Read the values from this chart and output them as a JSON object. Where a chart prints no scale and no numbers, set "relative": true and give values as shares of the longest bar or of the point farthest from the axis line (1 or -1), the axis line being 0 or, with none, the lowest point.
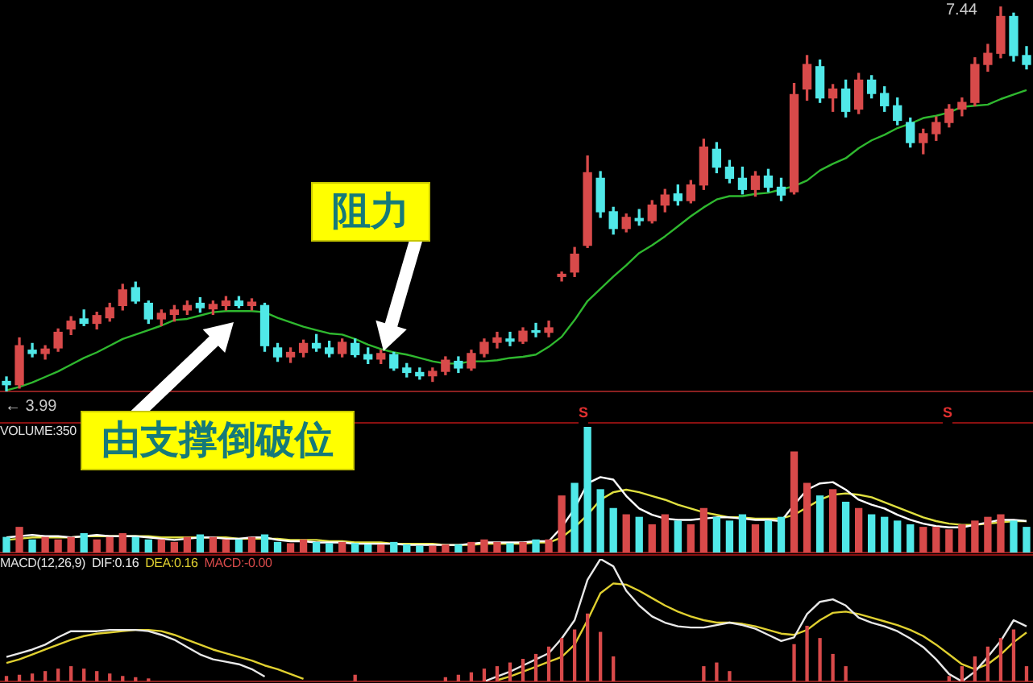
{
  "chart_data": [
    {
      "type": "candlestick",
      "categories": [
        null,
        null,
        null,
        null,
        null,
        null,
        null,
        null,
        null,
        null,
        null,
        null,
        null,
        null,
        null,
        null,
        null,
        null,
        null,
        null,
        null,
        null,
        null,
        null,
        null,
        null,
        null,
        null,
        null,
        null,
        null,
        null,
        null,
        null,
        null,
        null,
        null,
        null,
        null,
        null,
        null,
        null,
        null,
        null,
        null,
        null,
        null,
        null,
        null,
        null,
        null,
        null,
        null,
        null,
        null,
        null,
        null,
        null,
        null,
        null,
        null,
        null,
        null,
        null,
        null,
        null,
        null,
        null,
        null,
        null,
        null,
        null,
        null,
        null,
        null,
        null,
        null,
        null,
        null,
        null
      ],
      "series": [
        {
          "type": "line",
          "color": "#2fb82f",
          "values": [
            4.0,
            4.03,
            4.07,
            4.12,
            4.17,
            4.23,
            4.29,
            4.34,
            4.4,
            4.46,
            4.5,
            4.54,
            4.58,
            4.63,
            4.64,
            4.67,
            4.7,
            4.71,
            4.71,
            4.71,
            4.7,
            4.65,
            4.61,
            4.57,
            4.54,
            4.51,
            4.5,
            4.46,
            4.41,
            4.37,
            4.34,
            4.32,
            4.29,
            4.26,
            4.24,
            4.24,
            4.26,
            4.26,
            4.27,
            4.29,
            4.3,
            4.32,
            4.39,
            4.48,
            4.63,
            4.8,
            4.91,
            5.02,
            5.12,
            5.23,
            5.3,
            5.38,
            5.47,
            5.56,
            5.64,
            5.71,
            5.74,
            5.74,
            5.76,
            5.77,
            5.8,
            5.83,
            5.88,
            5.97,
            6.03,
            6.08,
            6.17,
            6.24,
            6.29,
            6.35,
            6.39,
            6.44,
            6.46,
            6.49,
            6.54,
            6.55,
            6.56,
            6.61,
            6.65,
            6.69
          ]
        },
        {
          "ohlc": [
            [
              4.08,
              4.12,
              3.99,
              4.05
            ],
            [
              4.05,
              4.47,
              4.02,
              4.4
            ],
            [
              4.36,
              4.42,
              4.3,
              4.33
            ],
            [
              4.33,
              4.4,
              4.28,
              4.37
            ],
            [
              4.38,
              4.55,
              4.35,
              4.52
            ],
            [
              4.55,
              4.66,
              4.5,
              4.62
            ],
            [
              4.64,
              4.72,
              4.58,
              4.6
            ],
            [
              4.6,
              4.7,
              4.55,
              4.67
            ],
            [
              4.65,
              4.78,
              4.62,
              4.74
            ],
            [
              4.76,
              4.95,
              4.72,
              4.9
            ],
            [
              4.92,
              4.97,
              4.78,
              4.8
            ],
            [
              4.78,
              4.8,
              4.6,
              4.64
            ],
            [
              4.64,
              4.72,
              4.58,
              4.69
            ],
            [
              4.68,
              4.76,
              4.62,
              4.72
            ],
            [
              4.72,
              4.8,
              4.68,
              4.76
            ],
            [
              4.78,
              4.83,
              4.7,
              4.74
            ],
            [
              4.73,
              4.8,
              4.68,
              4.77
            ],
            [
              4.76,
              4.84,
              4.72,
              4.8
            ],
            [
              4.8,
              4.84,
              4.74,
              4.76
            ],
            [
              4.76,
              4.82,
              4.72,
              4.79
            ],
            [
              4.76,
              4.78,
              4.35,
              4.4
            ],
            [
              4.38,
              4.42,
              4.26,
              4.3
            ],
            [
              4.3,
              4.38,
              4.25,
              4.34
            ],
            [
              4.34,
              4.45,
              4.3,
              4.42
            ],
            [
              4.42,
              4.5,
              4.35,
              4.38
            ],
            [
              4.38,
              4.44,
              4.3,
              4.33
            ],
            [
              4.33,
              4.46,
              4.3,
              4.43
            ],
            [
              4.42,
              4.46,
              4.3,
              4.32
            ],
            [
              4.32,
              4.38,
              4.24,
              4.28
            ],
            [
              4.28,
              4.36,
              4.24,
              4.33
            ],
            [
              4.32,
              4.34,
              4.18,
              4.2
            ],
            [
              4.2,
              4.24,
              4.12,
              4.16
            ],
            [
              4.16,
              4.2,
              4.1,
              4.13
            ],
            [
              4.13,
              4.2,
              4.08,
              4.17
            ],
            [
              4.17,
              4.3,
              4.14,
              4.27
            ],
            [
              4.26,
              4.3,
              4.16,
              4.2
            ],
            [
              4.2,
              4.36,
              4.18,
              4.33
            ],
            [
              4.33,
              4.46,
              4.3,
              4.43
            ],
            [
              4.43,
              4.52,
              4.38,
              4.47
            ],
            [
              4.46,
              4.52,
              4.4,
              4.44
            ],
            [
              4.44,
              4.56,
              4.42,
              4.53
            ],
            [
              4.53,
              4.6,
              4.48,
              4.52
            ],
            [
              4.52,
              4.62,
              4.48,
              4.56
            ],
            [
              5.02,
              5.06,
              4.98,
              5.04
            ],
            [
              5.06,
              5.28,
              5.02,
              5.22
            ],
            [
              5.3,
              6.1,
              5.28,
              5.95
            ],
            [
              5.9,
              5.96,
              5.55,
              5.6
            ],
            [
              5.6,
              5.64,
              5.4,
              5.45
            ],
            [
              5.45,
              5.58,
              5.42,
              5.55
            ],
            [
              5.54,
              5.62,
              5.48,
              5.52
            ],
            [
              5.52,
              5.7,
              5.5,
              5.66
            ],
            [
              5.66,
              5.8,
              5.6,
              5.75
            ],
            [
              5.76,
              5.84,
              5.66,
              5.7
            ],
            [
              5.7,
              5.88,
              5.68,
              5.84
            ],
            [
              5.84,
              6.25,
              5.8,
              6.18
            ],
            [
              6.16,
              6.22,
              5.95,
              6.0
            ],
            [
              6.0,
              6.06,
              5.86,
              5.9
            ],
            [
              5.9,
              6.0,
              5.76,
              5.8
            ],
            [
              5.8,
              5.96,
              5.74,
              5.92
            ],
            [
              5.92,
              5.98,
              5.78,
              5.82
            ],
            [
              5.82,
              5.9,
              5.7,
              5.75
            ],
            [
              5.78,
              6.75,
              5.76,
              6.65
            ],
            [
              6.7,
              7.0,
              6.6,
              6.92
            ],
            [
              6.9,
              6.96,
              6.58,
              6.62
            ],
            [
              6.62,
              6.74,
              6.5,
              6.7
            ],
            [
              6.7,
              6.78,
              6.45,
              6.5
            ],
            [
              6.52,
              6.84,
              6.48,
              6.78
            ],
            [
              6.78,
              6.82,
              6.62,
              6.66
            ],
            [
              6.66,
              6.72,
              6.5,
              6.55
            ],
            [
              6.55,
              6.62,
              6.38,
              6.42
            ],
            [
              6.4,
              6.44,
              6.18,
              6.22
            ],
            [
              6.22,
              6.34,
              6.12,
              6.3
            ],
            [
              6.3,
              6.45,
              6.24,
              6.4
            ],
            [
              6.4,
              6.56,
              6.36,
              6.52
            ],
            [
              6.52,
              6.62,
              6.46,
              6.58
            ],
            [
              6.58,
              6.98,
              6.55,
              6.92
            ],
            [
              6.92,
              7.1,
              6.86,
              7.02
            ],
            [
              7.02,
              7.44,
              6.98,
              7.35
            ],
            [
              7.35,
              7.38,
              6.95,
              7.0
            ],
            [
              7.0,
              7.08,
              6.88,
              6.92
            ]
          ],
          "colors": [
            "#50e8e8",
            "#d84a4a",
            "#50e8e8",
            "#d84a4a",
            "#d84a4a",
            "#d84a4a",
            "#50e8e8",
            "#d84a4a",
            "#d84a4a",
            "#d84a4a",
            "#50e8e8",
            "#50e8e8",
            "#d84a4a",
            "#d84a4a",
            "#d84a4a",
            "#50e8e8",
            "#d84a4a",
            "#d84a4a",
            "#50e8e8",
            "#d84a4a",
            "#50e8e8",
            "#50e8e8",
            "#d84a4a",
            "#d84a4a",
            "#50e8e8",
            "#50e8e8",
            "#d84a4a",
            "#50e8e8",
            "#50e8e8",
            "#d84a4a",
            "#50e8e8",
            "#50e8e8",
            "#50e8e8",
            "#d84a4a",
            "#d84a4a",
            "#50e8e8",
            "#d84a4a",
            "#d84a4a",
            "#d84a4a",
            "#50e8e8",
            "#d84a4a",
            "#50e8e8",
            "#d84a4a",
            "#d84a4a",
            "#d84a4a",
            "#d84a4a",
            "#50e8e8",
            "#50e8e8",
            "#d84a4a",
            "#50e8e8",
            "#d84a4a",
            "#d84a4a",
            "#50e8e8",
            "#d84a4a",
            "#d84a4a",
            "#50e8e8",
            "#50e8e8",
            "#50e8e8",
            "#d84a4a",
            "#50e8e8",
            "#50e8e8",
            "#d84a4a",
            "#d84a4a",
            "#50e8e8",
            "#d84a4a",
            "#50e8e8",
            "#d84a4a",
            "#50e8e8",
            "#50e8e8",
            "#50e8e8",
            "#50e8e8",
            "#d84a4a",
            "#d84a4a",
            "#d84a4a",
            "#d84a4a",
            "#d84a4a",
            "#d84a4a",
            "#d84a4a",
            "#50e8e8",
            "#50e8e8"
          ]
        }
      ],
      "annotations": [
        "← 3.99",
        "7.44",
        "阻力",
        "由支撑倒破位",
        "S",
        "S"
      ]
    },
    {
      "type": "bar",
      "title": "VOLUME:350",
      "relative": true,
      "categories": [
        null,
        null,
        null,
        null,
        null,
        null,
        null,
        null,
        null,
        null,
        null,
        null,
        null,
        null,
        null,
        null,
        null,
        null,
        null,
        null,
        null,
        null,
        null,
        null,
        null,
        null,
        null,
        null,
        null,
        null,
        null,
        null,
        null,
        null,
        null,
        null,
        null,
        null,
        null,
        null,
        null,
        null,
        null,
        null,
        null,
        null,
        null,
        null,
        null,
        null,
        null,
        null,
        null,
        null,
        null,
        null,
        null,
        null,
        null,
        null,
        null,
        null,
        null,
        null,
        null,
        null,
        null,
        null,
        null,
        null,
        null,
        null,
        null,
        null,
        null,
        null,
        null,
        null,
        null,
        null
      ],
      "series": [
        {
          "values": [
            0.12,
            0.2,
            0.1,
            0.12,
            0.1,
            0.12,
            0.15,
            0.1,
            0.12,
            0.15,
            0.12,
            0.1,
            0.1,
            0.08,
            0.12,
            0.14,
            0.12,
            0.1,
            0.1,
            0.12,
            0.14,
            0.08,
            0.07,
            0.1,
            0.08,
            0.07,
            0.08,
            0.07,
            0.06,
            0.06,
            0.08,
            0.06,
            0.05,
            0.05,
            0.06,
            0.06,
            0.08,
            0.1,
            0.08,
            0.07,
            0.08,
            0.1,
            0.1,
            0.45,
            0.55,
            1.0,
            0.5,
            0.35,
            0.3,
            0.28,
            0.22,
            0.3,
            0.25,
            0.22,
            0.35,
            0.28,
            0.25,
            0.3,
            0.22,
            0.25,
            0.28,
            0.8,
            0.55,
            0.45,
            0.5,
            0.4,
            0.35,
            0.3,
            0.28,
            0.25,
            0.22,
            0.2,
            0.2,
            0.18,
            0.22,
            0.25,
            0.28,
            0.3,
            0.25,
            0.2
          ],
          "colors": [
            "#50e8e8",
            "#d84a4a",
            "#50e8e8",
            "#d84a4a",
            "#d84a4a",
            "#d84a4a",
            "#50e8e8",
            "#d84a4a",
            "#d84a4a",
            "#d84a4a",
            "#50e8e8",
            "#50e8e8",
            "#d84a4a",
            "#d84a4a",
            "#d84a4a",
            "#50e8e8",
            "#d84a4a",
            "#d84a4a",
            "#50e8e8",
            "#d84a4a",
            "#50e8e8",
            "#50e8e8",
            "#d84a4a",
            "#d84a4a",
            "#50e8e8",
            "#50e8e8",
            "#d84a4a",
            "#50e8e8",
            "#50e8e8",
            "#d84a4a",
            "#50e8e8",
            "#50e8e8",
            "#50e8e8",
            "#d84a4a",
            "#d84a4a",
            "#50e8e8",
            "#d84a4a",
            "#d84a4a",
            "#d84a4a",
            "#50e8e8",
            "#d84a4a",
            "#50e8e8",
            "#d84a4a",
            "#d84a4a",
            "#50e8e8",
            "#50e8e8",
            "#50e8e8",
            "#50e8e8",
            "#d84a4a",
            "#50e8e8",
            "#d84a4a",
            "#d84a4a",
            "#50e8e8",
            "#d84a4a",
            "#d84a4a",
            "#50e8e8",
            "#50e8e8",
            "#50e8e8",
            "#d84a4a",
            "#50e8e8",
            "#50e8e8",
            "#d84a4a",
            "#d84a4a",
            "#50e8e8",
            "#d84a4a",
            "#50e8e8",
            "#d84a4a",
            "#50e8e8",
            "#50e8e8",
            "#50e8e8",
            "#50e8e8",
            "#d84a4a",
            "#d84a4a",
            "#d84a4a",
            "#d84a4a",
            "#d84a4a",
            "#d84a4a",
            "#d84a4a",
            "#50e8e8",
            "#50e8e8"
          ]
        },
        {
          "type": "line",
          "color": "#ffffff",
          "values": [
            0.12,
            0.13,
            0.14,
            0.13,
            0.13,
            0.12,
            0.13,
            0.14,
            0.13,
            0.13,
            0.13,
            0.12,
            0.11,
            0.1,
            0.11,
            0.12,
            0.12,
            0.11,
            0.11,
            0.12,
            0.12,
            0.1,
            0.09,
            0.09,
            0.08,
            0.08,
            0.08,
            0.07,
            0.07,
            0.07,
            0.07,
            0.06,
            0.06,
            0.06,
            0.06,
            0.06,
            0.07,
            0.08,
            0.08,
            0.08,
            0.08,
            0.09,
            0.09,
            0.2,
            0.35,
            0.55,
            0.6,
            0.58,
            0.45,
            0.35,
            0.3,
            0.27,
            0.26,
            0.26,
            0.27,
            0.28,
            0.28,
            0.27,
            0.26,
            0.26,
            0.25,
            0.38,
            0.5,
            0.55,
            0.56,
            0.5,
            0.42,
            0.38,
            0.35,
            0.3,
            0.26,
            0.23,
            0.21,
            0.2,
            0.2,
            0.22,
            0.24,
            0.26,
            0.26,
            0.25
          ]
        },
        {
          "type": "line",
          "color": "#e0e040",
          "values": [
            0.1,
            0.11,
            0.12,
            0.12,
            0.12,
            0.12,
            0.13,
            0.13,
            0.13,
            0.13,
            0.13,
            0.13,
            0.12,
            0.12,
            0.12,
            0.12,
            0.12,
            0.12,
            0.11,
            0.11,
            0.11,
            0.11,
            0.1,
            0.1,
            0.1,
            0.09,
            0.09,
            0.08,
            0.08,
            0.08,
            0.07,
            0.07,
            0.07,
            0.07,
            0.06,
            0.06,
            0.06,
            0.07,
            0.07,
            0.07,
            0.07,
            0.08,
            0.08,
            0.12,
            0.2,
            0.3,
            0.42,
            0.48,
            0.5,
            0.48,
            0.45,
            0.42,
            0.38,
            0.35,
            0.32,
            0.3,
            0.28,
            0.28,
            0.27,
            0.27,
            0.27,
            0.3,
            0.36,
            0.42,
            0.46,
            0.47,
            0.46,
            0.44,
            0.4,
            0.36,
            0.32,
            0.28,
            0.25,
            0.23,
            0.22,
            0.22,
            0.23,
            0.24,
            0.25,
            0.25
          ]
        }
      ]
    },
    {
      "type": "line",
      "title": "MACD(12,26,9)",
      "relative": true,
      "categories": [
        null,
        null,
        null,
        null,
        null,
        null,
        null,
        null,
        null,
        null,
        null,
        null,
        null,
        null,
        null,
        null,
        null,
        null,
        null,
        null,
        null,
        null,
        null,
        null,
        null,
        null,
        null,
        null,
        null,
        null,
        null,
        null,
        null,
        null,
        null,
        null,
        null,
        null,
        null,
        null,
        null,
        null,
        null,
        null,
        null,
        null,
        null,
        null,
        null,
        null,
        null,
        null,
        null,
        null,
        null,
        null,
        null,
        null,
        null,
        null,
        null,
        null,
        null,
        null,
        null,
        null,
        null,
        null,
        null,
        null,
        null,
        null,
        null,
        null,
        null,
        null,
        null,
        null,
        null,
        null
      ],
      "series": [
        {
          "name": "DIF:0.16",
          "color": "#e8e8e8",
          "values": [
            0.2,
            0.23,
            0.26,
            0.3,
            0.36,
            0.41,
            0.41,
            0.41,
            0.42,
            0.42,
            0.42,
            0.41,
            0.38,
            0.34,
            0.28,
            0.22,
            0.18,
            0.16,
            0.14,
            0.1,
            0.04,
            null,
            null,
            null,
            null,
            null,
            null,
            null,
            null,
            null,
            null,
            null,
            null,
            null,
            null,
            null,
            null,
            0.0,
            0.04,
            0.08,
            0.13,
            0.18,
            0.23,
            0.35,
            0.5,
            0.83,
            1.0,
            0.94,
            0.74,
            0.62,
            0.53,
            0.48,
            0.45,
            0.44,
            0.44,
            0.46,
            0.48,
            0.46,
            0.43,
            0.38,
            0.33,
            0.36,
            0.55,
            0.65,
            0.67,
            0.62,
            0.52,
            0.48,
            0.45,
            0.41,
            0.35,
            0.28,
            0.18,
            0.06,
            0.0,
            0.08,
            0.2,
            0.33,
            0.5,
            0.45
          ]
        },
        {
          "name": "DEA:0.16",
          "color": "#e0d030",
          "values": [
            0.15,
            0.18,
            0.22,
            0.26,
            0.3,
            0.34,
            0.37,
            0.39,
            0.4,
            0.41,
            0.42,
            0.42,
            0.41,
            0.38,
            0.34,
            0.3,
            0.26,
            0.23,
            0.2,
            0.17,
            0.13,
            0.1,
            0.06,
            0.02,
            null,
            null,
            null,
            null,
            null,
            null,
            null,
            null,
            null,
            null,
            null,
            null,
            null,
            null,
            0.01,
            0.04,
            0.08,
            0.12,
            0.16,
            0.2,
            0.3,
            0.5,
            0.72,
            0.8,
            0.79,
            0.74,
            0.68,
            0.62,
            0.57,
            0.53,
            0.5,
            0.48,
            0.48,
            0.47,
            0.45,
            0.42,
            0.39,
            0.38,
            0.42,
            0.5,
            0.56,
            0.57,
            0.55,
            0.52,
            0.49,
            0.46,
            0.42,
            0.37,
            0.3,
            0.22,
            0.14,
            0.1,
            0.14,
            0.22,
            0.32,
            0.4
          ]
        },
        {
          "name": "MACD:-0.00",
          "type": "bar",
          "color": "#d84a4a",
          "values": [
            0.04,
            0.05,
            0.06,
            0.08,
            0.1,
            0.12,
            0.1,
            0.08,
            0.06,
            0.04,
            0.03,
            0.02,
            null,
            null,
            null,
            null,
            null,
            null,
            null,
            null,
            null,
            null,
            null,
            null,
            null,
            null,
            null,
            0.05,
            null,
            null,
            null,
            null,
            null,
            null,
            0.03,
            0.05,
            0.07,
            0.1,
            0.12,
            0.15,
            0.18,
            0.22,
            0.28,
            0.35,
            0.42,
            0.55,
            0.4,
            0.2,
            null,
            null,
            null,
            null,
            null,
            null,
            0.12,
            0.15,
            0.08,
            null,
            null,
            null,
            null,
            0.3,
            0.45,
            0.35,
            0.22,
            0.12,
            null,
            null,
            null,
            null,
            null,
            null,
            null,
            0.04,
            0.12,
            0.2,
            0.28,
            0.35,
            0.42,
            0.12
          ]
        }
      ]
    }
  ]
}
